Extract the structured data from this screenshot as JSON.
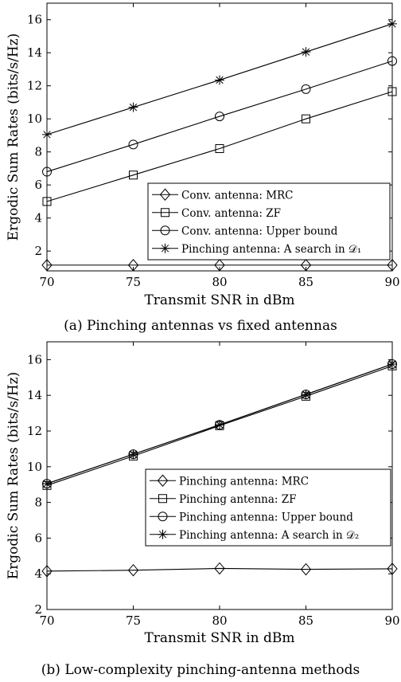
{
  "chart_data": [
    {
      "type": "line",
      "caption": "(a) Pinching antennas vs fixed antennas",
      "xlabel": "Transmit SNR in dBm",
      "ylabel": "Ergodic Sum Rates (bits/s/Hz)",
      "xlim": [
        70,
        90
      ],
      "ylim": [
        0.8,
        17
      ],
      "x": [
        70,
        75,
        80,
        85,
        90
      ],
      "xticks": [
        "70",
        "75",
        "80",
        "85",
        "90"
      ],
      "yticks": [
        2,
        4,
        6,
        8,
        10,
        12,
        14,
        16
      ],
      "grid": false,
      "legend_position": "bottom-right",
      "series": [
        {
          "name": "Conv. antenna: MRC",
          "marker": "diamond",
          "values": [
            1.15,
            1.15,
            1.15,
            1.15,
            1.15
          ]
        },
        {
          "name": "Conv. antenna: ZF",
          "marker": "square",
          "values": [
            5.0,
            6.6,
            8.2,
            10.0,
            11.65
          ]
        },
        {
          "name": "Conv. antenna: Upper bound",
          "marker": "circle",
          "values": [
            6.8,
            8.45,
            10.15,
            11.8,
            13.5
          ]
        },
        {
          "name": "Pinching antenna: A search in 𝒟₁",
          "marker": "star",
          "values": [
            9.05,
            10.7,
            12.35,
            14.05,
            15.75
          ]
        }
      ]
    },
    {
      "type": "line",
      "caption": "(b) Low-complexity pinching-antenna methods",
      "xlabel": "Transmit SNR in dBm",
      "ylabel": "Ergodic Sum Rates (bits/s/Hz)",
      "xlim": [
        70,
        90
      ],
      "ylim": [
        2,
        17
      ],
      "x": [
        70,
        75,
        80,
        85,
        90
      ],
      "xticks": [
        "70",
        "75",
        "80",
        "85",
        "90"
      ],
      "yticks": [
        2,
        4,
        6,
        8,
        10,
        12,
        14,
        16
      ],
      "grid": false,
      "legend_position": "center-right",
      "series": [
        {
          "name": "Pinching antenna: MRC",
          "marker": "diamond",
          "values": [
            4.15,
            4.2,
            4.3,
            4.25,
            4.28
          ]
        },
        {
          "name": "Pinching antenna: ZF",
          "marker": "square",
          "values": [
            8.95,
            10.6,
            12.3,
            13.95,
            15.65
          ]
        },
        {
          "name": "Pinching antenna: Upper bound",
          "marker": "circle",
          "values": [
            9.05,
            10.7,
            12.35,
            14.05,
            15.75
          ]
        },
        {
          "name": "Pinching antenna: A search in 𝒟₂",
          "marker": "star",
          "values": [
            9.05,
            10.7,
            12.35,
            14.05,
            15.75
          ]
        }
      ]
    }
  ]
}
